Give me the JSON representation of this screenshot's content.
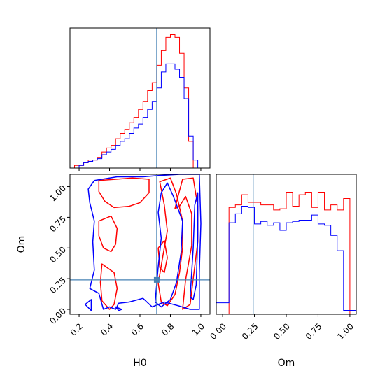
{
  "chart_data": {
    "type": "corner",
    "parameters": [
      "H0",
      "Om"
    ],
    "truth": {
      "H0": 0.71,
      "Om": 0.24
    },
    "truth_color": "#4682b4",
    "series": [
      {
        "color": "#ff0000"
      },
      {
        "color": "#0000ff"
      }
    ],
    "panels": [
      {
        "id": "H0-marginal",
        "type": "histogram",
        "x": "H0",
        "xlim": [
          0.14,
          1.06
        ],
        "ylim": [
          0,
          1.05
        ],
        "show_tick_labels": false,
        "xticks": [
          0.2,
          0.4,
          0.6,
          0.8,
          1.0
        ],
        "bins": [
          0.14,
          0.17,
          0.2,
          0.23,
          0.26,
          0.29,
          0.32,
          0.35,
          0.38,
          0.41,
          0.44,
          0.47,
          0.5,
          0.53,
          0.56,
          0.59,
          0.62,
          0.65,
          0.68,
          0.71,
          0.74,
          0.77,
          0.8,
          0.83,
          0.86,
          0.89,
          0.92,
          0.95,
          0.98,
          1.01,
          1.04,
          1.06
        ],
        "series_values": [
          [
            0.0,
            0.02,
            0.02,
            0.04,
            0.06,
            0.06,
            0.08,
            0.12,
            0.15,
            0.17,
            0.22,
            0.26,
            0.29,
            0.34,
            0.38,
            0.44,
            0.5,
            0.58,
            0.64,
            0.77,
            0.88,
            0.98,
            1.0,
            0.98,
            0.86,
            0.6,
            0.2,
            0.0,
            0.0,
            0.0,
            0.0
          ],
          [
            0.0,
            0.0,
            0.02,
            0.04,
            0.05,
            0.06,
            0.07,
            0.1,
            0.12,
            0.14,
            0.17,
            0.2,
            0.22,
            0.26,
            0.3,
            0.33,
            0.38,
            0.44,
            0.5,
            0.6,
            0.72,
            0.78,
            0.78,
            0.74,
            0.68,
            0.52,
            0.24,
            0.06,
            0.0,
            0.0,
            0.0
          ]
        ]
      },
      {
        "id": "Om-marginal",
        "type": "histogram",
        "x": "Om",
        "xlim": [
          -0.05,
          1.05
        ],
        "ylim": [
          0,
          1.1
        ],
        "xticks": [
          0.0,
          0.25,
          0.5,
          0.75,
          1.0
        ],
        "xtick_labels": [
          "0.00",
          "0.25",
          "0.50",
          "0.75",
          "1.00"
        ],
        "xlabel": "Om",
        "bins": [
          -0.05,
          0.0,
          0.05,
          0.1,
          0.15,
          0.2,
          0.25,
          0.3,
          0.35,
          0.4,
          0.45,
          0.5,
          0.55,
          0.6,
          0.65,
          0.7,
          0.75,
          0.8,
          0.85,
          0.9,
          0.95,
          1.0,
          1.05
        ],
        "series_values": [
          [
            0.0,
            0.0,
            0.84,
            0.86,
            0.94,
            0.88,
            0.88,
            0.86,
            0.86,
            0.82,
            0.83,
            0.96,
            0.85,
            0.94,
            0.96,
            0.84,
            0.96,
            0.82,
            0.86,
            0.82,
            0.91,
            0.0
          ],
          [
            0.09,
            0.09,
            0.72,
            0.79,
            0.85,
            0.84,
            0.71,
            0.73,
            0.7,
            0.72,
            0.66,
            0.72,
            0.73,
            0.74,
            0.74,
            0.78,
            0.71,
            0.7,
            0.62,
            0.5,
            0.03,
            0.03
          ]
        ]
      },
      {
        "id": "H0-Om-joint",
        "type": "contour",
        "x": "H0",
        "y": "Om",
        "xlim": [
          0.14,
          1.06
        ],
        "ylim": [
          -0.04,
          1.1
        ],
        "xticks": [
          0.2,
          0.4,
          0.6,
          0.8,
          1.0
        ],
        "xtick_labels": [
          "0.2",
          "0.4",
          "0.6",
          "0.8",
          "1.0"
        ],
        "yticks": [
          0.0,
          0.25,
          0.5,
          0.75,
          1.0
        ],
        "ytick_labels": [
          "0.00",
          "0.25",
          "0.50",
          "0.75",
          "1.00"
        ],
        "xlabel": "H0",
        "ylabel": "Om",
        "truth_marker": {
          "x": 0.71,
          "y": 0.24
        },
        "contours": [
          {
            "series": 0,
            "paths": [
              [
                [
                  0.33,
                  1.05
                ],
                [
                  0.55,
                  1.07
                ],
                [
                  0.66,
                  1.06
                ],
                [
                  0.66,
                  0.95
                ],
                [
                  0.6,
                  0.87
                ],
                [
                  0.53,
                  0.84
                ],
                [
                  0.43,
                  0.83
                ],
                [
                  0.37,
                  0.88
                ],
                [
                  0.33,
                  0.96
                ],
                [
                  0.33,
                  1.05
                ]
              ],
              [
                [
                  0.33,
                  0.72
                ],
                [
                  0.41,
                  0.76
                ],
                [
                  0.45,
                  0.66
                ],
                [
                  0.44,
                  0.53
                ],
                [
                  0.41,
                  0.47
                ],
                [
                  0.36,
                  0.5
                ],
                [
                  0.33,
                  0.6
                ],
                [
                  0.33,
                  0.72
                ]
              ],
              [
                [
                  0.35,
                  0.37
                ],
                [
                  0.43,
                  0.3
                ],
                [
                  0.45,
                  0.17
                ],
                [
                  0.43,
                  0.04
                ],
                [
                  0.4,
                  0.0
                ],
                [
                  0.35,
                  0.07
                ],
                [
                  0.34,
                  0.22
                ],
                [
                  0.35,
                  0.37
                ]
              ],
              [
                [
                  0.72,
                  0.21
                ],
                [
                  0.75,
                  0.43
                ],
                [
                  0.78,
                  0.64
                ],
                [
                  0.76,
                  0.85
                ],
                [
                  0.73,
                  1.04
                ],
                [
                  0.8,
                  1.07
                ],
                [
                  0.84,
                  0.94
                ],
                [
                  0.88,
                  0.72
                ],
                [
                  0.88,
                  0.5
                ],
                [
                  0.86,
                  0.3
                ],
                [
                  0.83,
                  0.12
                ],
                [
                  0.78,
                  0.03
                ],
                [
                  0.74,
                  0.06
                ],
                [
                  0.72,
                  0.21
                ]
              ],
              [
                [
                  0.72,
                  0.5
                ],
                [
                  0.76,
                  0.56
                ],
                [
                  0.78,
                  0.42
                ],
                [
                  0.76,
                  0.3
                ],
                [
                  0.73,
                  0.34
                ],
                [
                  0.72,
                  0.5
                ]
              ],
              [
                [
                  0.83,
                  0.82
                ],
                [
                  0.85,
                  0.92
                ],
                [
                  0.88,
                  1.06
                ],
                [
                  0.95,
                  1.07
                ],
                [
                  0.98,
                  0.84
                ],
                [
                  0.98,
                  0.55
                ],
                [
                  0.95,
                  0.25
                ],
                [
                  0.93,
                  0.04
                ],
                [
                  0.88,
                  0.0
                ],
                [
                  0.9,
                  0.24
                ],
                [
                  0.94,
                  0.52
                ],
                [
                  0.94,
                  0.78
                ],
                [
                  0.9,
                  0.92
                ],
                [
                  0.86,
                  0.84
                ],
                [
                  0.83,
                  0.82
                ]
              ]
            ]
          },
          {
            "series": 1,
            "paths": [
              [
                [
                  0.26,
                  0.98
                ],
                [
                  0.3,
                  1.05
                ],
                [
                  0.45,
                  1.08
                ],
                [
                  0.62,
                  1.08
                ],
                [
                  0.72,
                  1.09
                ],
                [
                  0.86,
                  1.1
                ],
                [
                  0.99,
                  1.1
                ],
                [
                  1.0,
                  0.7
                ],
                [
                  0.99,
                  0.3
                ],
                [
                  0.99,
                  0.0
                ],
                [
                  0.93,
                  0.0
                ],
                [
                  0.85,
                  0.03
                ],
                [
                  0.76,
                  0.06
                ],
                [
                  0.68,
                  0.02
                ],
                [
                  0.62,
                  0.09
                ],
                [
                  0.53,
                  0.06
                ],
                [
                  0.46,
                  0.05
                ],
                [
                  0.44,
                  0.0
                ],
                [
                  0.4,
                  0.02
                ],
                [
                  0.36,
                  0.0
                ],
                [
                  0.33,
                  0.13
                ],
                [
                  0.27,
                  0.17
                ],
                [
                  0.3,
                  0.32
                ],
                [
                  0.29,
                  0.55
                ],
                [
                  0.3,
                  0.72
                ],
                [
                  0.27,
                  0.87
                ],
                [
                  0.26,
                  0.98
                ]
              ],
              [
                [
                  0.7,
                  0.06
                ],
                [
                  0.72,
                  0.35
                ],
                [
                  0.74,
                  0.58
                ],
                [
                  0.72,
                  0.79
                ],
                [
                  0.74,
                  0.95
                ],
                [
                  0.78,
                  1.03
                ],
                [
                  0.82,
                  0.92
                ],
                [
                  0.88,
                  0.72
                ],
                [
                  0.87,
                  0.46
                ],
                [
                  0.84,
                  0.22
                ],
                [
                  0.8,
                  0.08
                ],
                [
                  0.74,
                  0.02
                ],
                [
                  0.7,
                  0.06
                ]
              ],
              [
                [
                  0.93,
                  0.1
                ],
                [
                  0.95,
                  0.5
                ],
                [
                  0.96,
                  0.85
                ],
                [
                  0.98,
                  0.95
                ],
                [
                  0.98,
                  0.6
                ],
                [
                  0.97,
                  0.2
                ],
                [
                  0.95,
                  0.08
                ],
                [
                  0.93,
                  0.1
                ]
              ],
              [
                [
                  0.24,
                  0.04
                ],
                [
                  0.28,
                  0.08
                ],
                [
                  0.28,
                  -0.01
                ],
                [
                  0.24,
                  0.04
                ]
              ],
              [
                [
                  0.44,
                  0.02
                ],
                [
                  0.46,
                  -0.01
                ],
                [
                  0.48,
                  0.0
                ],
                [
                  0.44,
                  0.02
                ]
              ]
            ]
          }
        ]
      }
    ]
  }
}
